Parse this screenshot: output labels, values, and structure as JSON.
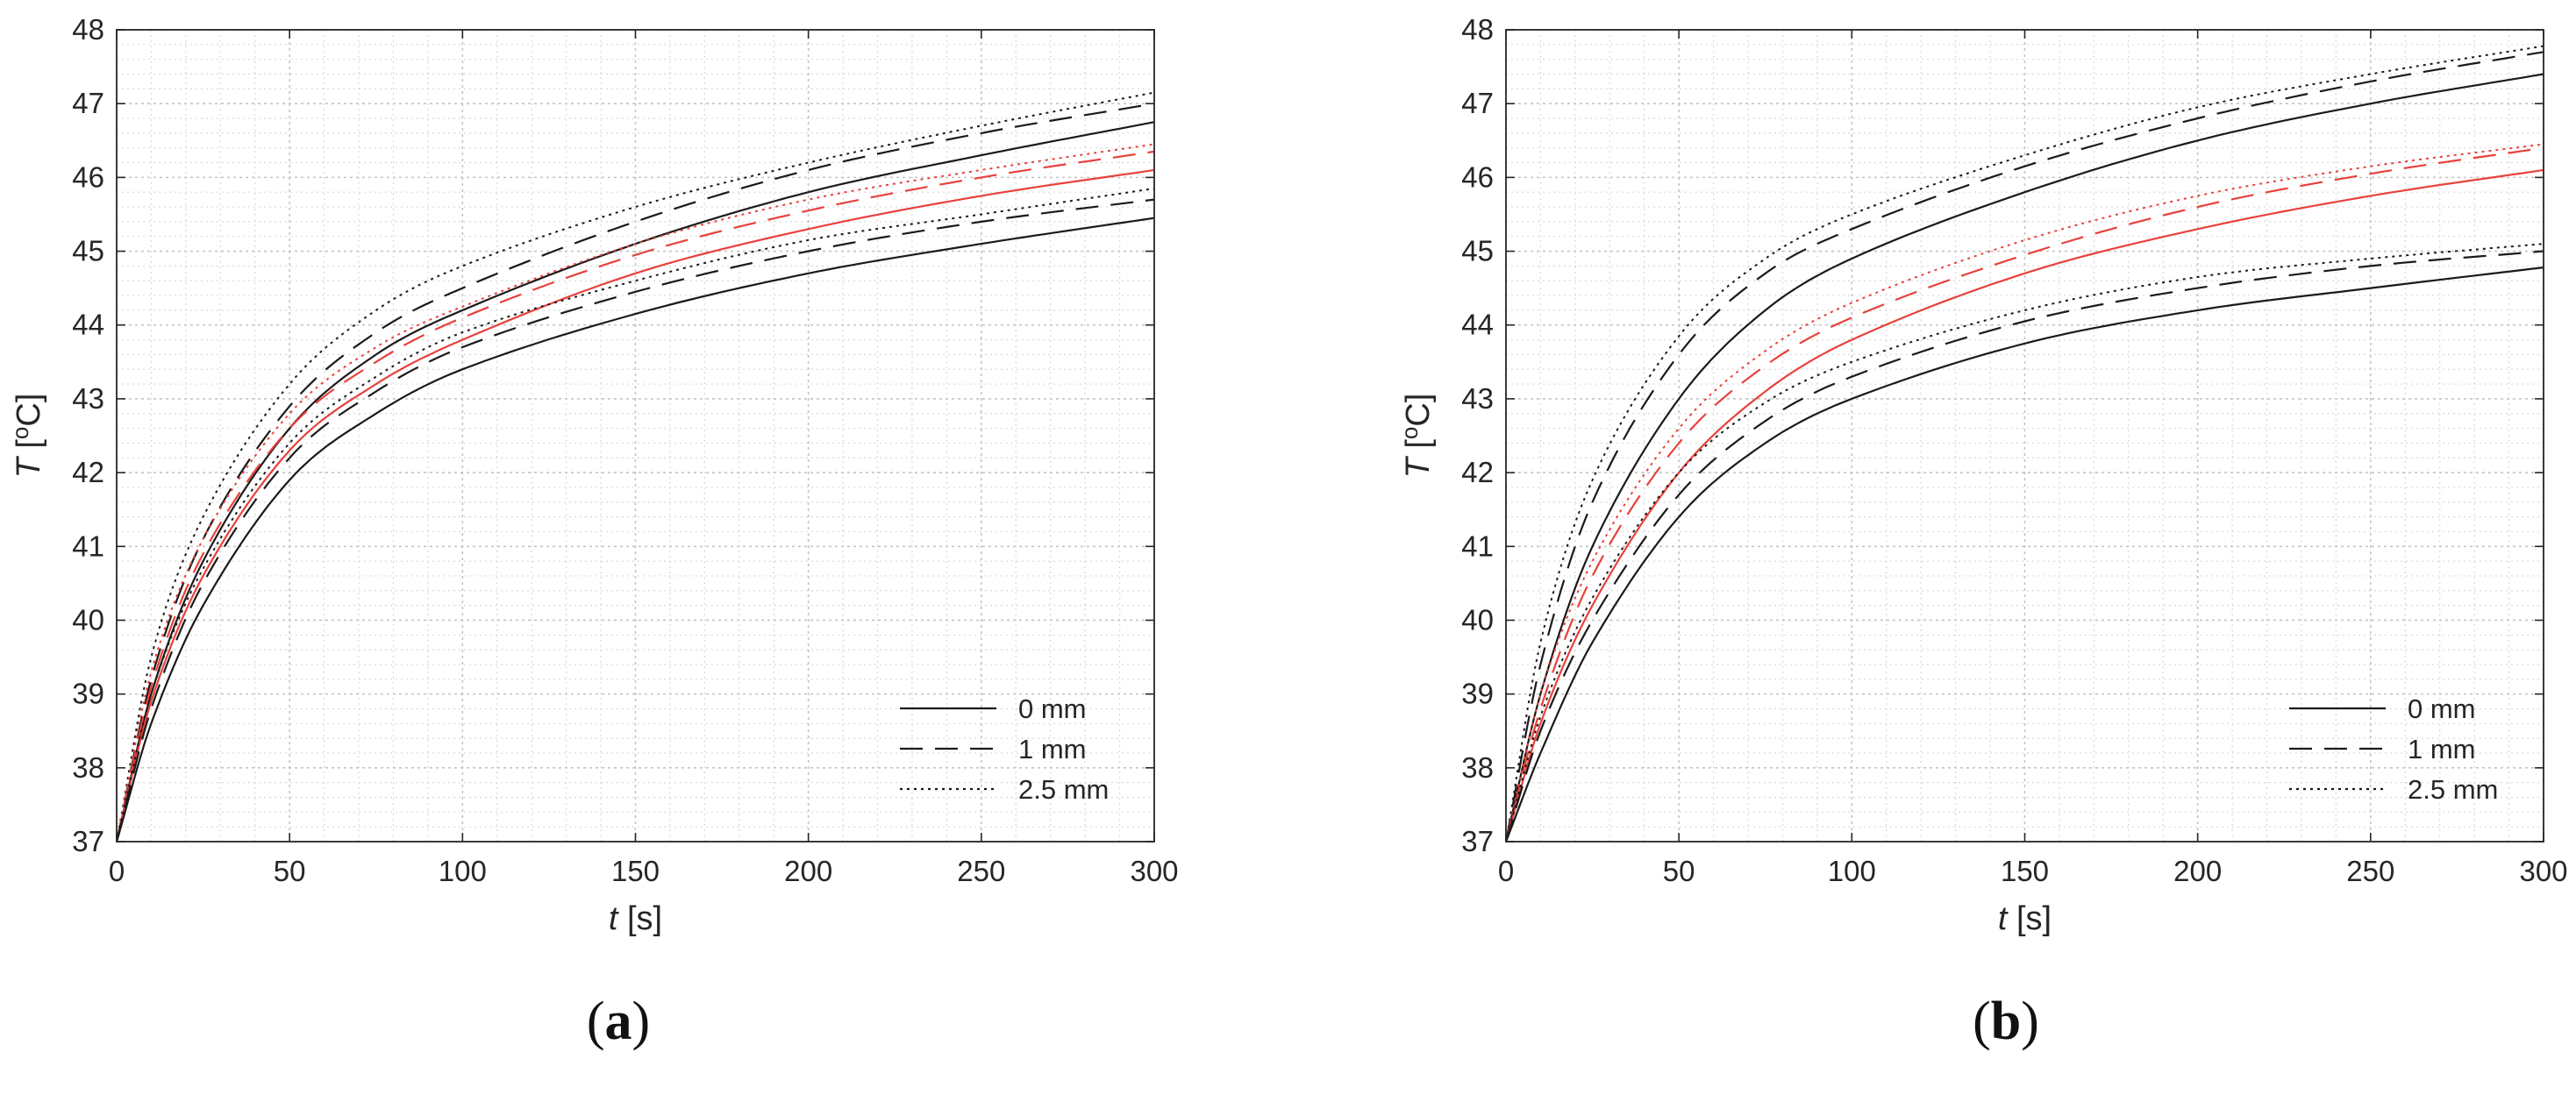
{
  "figure": {
    "panels": [
      {
        "label_pre": "(",
        "label_letter": "a",
        "label_post": ")"
      },
      {
        "label_pre": "(",
        "label_letter": "b",
        "label_post": ")"
      }
    ]
  },
  "chart_data": [
    {
      "type": "line",
      "panel": "a",
      "xlabel_var": "t",
      "xlabel_unit": "[s]",
      "ylabel_var": "T",
      "ylabel_unit_pre": "[",
      "ylabel_unit_sup": "o",
      "ylabel_unit_post": "C]",
      "xlim": [
        0,
        300
      ],
      "ylim": [
        37,
        48
      ],
      "xticks": [
        0,
        50,
        100,
        150,
        200,
        250,
        300
      ],
      "yticks": [
        37,
        38,
        39,
        40,
        41,
        42,
        43,
        44,
        45,
        46,
        47,
        48
      ],
      "grid": true,
      "minor_grid": true,
      "legend_position": "bottom-right",
      "legend": [
        {
          "label": "0 mm",
          "style": "solid"
        },
        {
          "label": "1 mm",
          "style": "dashed"
        },
        {
          "label": "2.5 mm",
          "style": "dotted"
        }
      ],
      "colors": {
        "black": "#1a1a1a",
        "red": "#e8413c"
      },
      "x": [
        0,
        10,
        25,
        50,
        75,
        100,
        150,
        200,
        250,
        300
      ],
      "series": [
        {
          "group": "upper",
          "style": "solid",
          "color": "black",
          "values": [
            37.0,
            39.0,
            40.8,
            42.6,
            43.6,
            44.2,
            45.1,
            45.8,
            46.3,
            46.75
          ]
        },
        {
          "group": "upper",
          "style": "dashed",
          "color": "black",
          "values": [
            37.0,
            39.2,
            41.1,
            42.9,
            43.9,
            44.5,
            45.4,
            46.1,
            46.6,
            47.0
          ]
        },
        {
          "group": "upper",
          "style": "dotted",
          "color": "black",
          "values": [
            37.0,
            39.5,
            41.4,
            43.2,
            44.2,
            44.8,
            45.6,
            46.2,
            46.7,
            47.15
          ]
        },
        {
          "group": "middle",
          "style": "solid",
          "color": "red",
          "values": [
            37.0,
            38.9,
            40.6,
            42.3,
            43.2,
            43.8,
            44.7,
            45.3,
            45.75,
            46.1
          ]
        },
        {
          "group": "middle",
          "style": "dashed",
          "color": "red",
          "values": [
            37.0,
            39.1,
            40.9,
            42.6,
            43.5,
            44.1,
            44.95,
            45.55,
            46.0,
            46.35
          ]
        },
        {
          "group": "middle",
          "style": "dotted",
          "color": "red",
          "values": [
            37.0,
            39.3,
            41.1,
            42.8,
            43.7,
            44.25,
            45.1,
            45.7,
            46.1,
            46.45
          ]
        },
        {
          "group": "lower",
          "style": "solid",
          "color": "black",
          "values": [
            37.0,
            38.6,
            40.2,
            41.9,
            42.8,
            43.4,
            44.15,
            44.7,
            45.1,
            45.45
          ]
        },
        {
          "group": "lower",
          "style": "dashed",
          "color": "black",
          "values": [
            37.0,
            38.8,
            40.5,
            42.2,
            43.1,
            43.7,
            44.45,
            45.0,
            45.4,
            45.7
          ]
        },
        {
          "group": "lower",
          "style": "dotted",
          "color": "black",
          "values": [
            37.0,
            39.0,
            40.7,
            42.4,
            43.3,
            43.9,
            44.6,
            45.15,
            45.5,
            45.85
          ]
        }
      ]
    },
    {
      "type": "line",
      "panel": "b",
      "xlabel_var": "t",
      "xlabel_unit": "[s]",
      "ylabel_var": "T",
      "ylabel_unit_pre": "[",
      "ylabel_unit_sup": "o",
      "ylabel_unit_post": "C]",
      "xlim": [
        0,
        300
      ],
      "ylim": [
        37,
        48
      ],
      "xticks": [
        0,
        50,
        100,
        150,
        200,
        250,
        300
      ],
      "yticks": [
        37,
        38,
        39,
        40,
        41,
        42,
        43,
        44,
        45,
        46,
        47,
        48
      ],
      "grid": true,
      "minor_grid": true,
      "legend_position": "bottom-right",
      "legend": [
        {
          "label": "0 mm",
          "style": "solid"
        },
        {
          "label": "1 mm",
          "style": "dashed"
        },
        {
          "label": "2.5 mm",
          "style": "dotted"
        }
      ],
      "colors": {
        "black": "#1a1a1a",
        "red": "#e8413c"
      },
      "x": [
        0,
        10,
        25,
        50,
        75,
        100,
        150,
        200,
        250,
        300
      ],
      "series": [
        {
          "group": "upper",
          "style": "solid",
          "color": "black",
          "values": [
            37.0,
            39.0,
            41.0,
            43.0,
            44.2,
            44.9,
            45.8,
            46.5,
            47.0,
            47.4
          ]
        },
        {
          "group": "upper",
          "style": "dashed",
          "color": "black",
          "values": [
            37.0,
            39.4,
            41.6,
            43.6,
            44.7,
            45.3,
            46.15,
            46.8,
            47.3,
            47.7
          ]
        },
        {
          "group": "upper",
          "style": "dotted",
          "color": "black",
          "values": [
            37.0,
            39.7,
            41.9,
            43.85,
            44.9,
            45.5,
            46.3,
            46.95,
            47.4,
            47.78
          ]
        },
        {
          "group": "middle",
          "style": "solid",
          "color": "red",
          "values": [
            37.0,
            38.6,
            40.2,
            42.0,
            43.1,
            43.8,
            44.7,
            45.3,
            45.75,
            46.1
          ]
        },
        {
          "group": "middle",
          "style": "dashed",
          "color": "red",
          "values": [
            37.0,
            38.8,
            40.6,
            42.4,
            43.45,
            44.1,
            44.95,
            45.6,
            46.05,
            46.4
          ]
        },
        {
          "group": "middle",
          "style": "dotted",
          "color": "red",
          "values": [
            37.0,
            39.0,
            40.8,
            42.6,
            43.65,
            44.3,
            45.15,
            45.75,
            46.15,
            46.45
          ]
        },
        {
          "group": "lower",
          "style": "solid",
          "color": "black",
          "values": [
            37.0,
            38.2,
            39.7,
            41.4,
            42.4,
            43.0,
            43.75,
            44.2,
            44.5,
            44.78
          ]
        },
        {
          "group": "lower",
          "style": "dashed",
          "color": "black",
          "values": [
            37.0,
            38.5,
            40.0,
            41.7,
            42.7,
            43.3,
            44.05,
            44.5,
            44.8,
            45.0
          ]
        },
        {
          "group": "lower",
          "style": "dotted",
          "color": "black",
          "values": [
            37.0,
            38.7,
            40.3,
            42.0,
            42.95,
            43.5,
            44.2,
            44.65,
            44.9,
            45.1
          ]
        }
      ]
    }
  ]
}
